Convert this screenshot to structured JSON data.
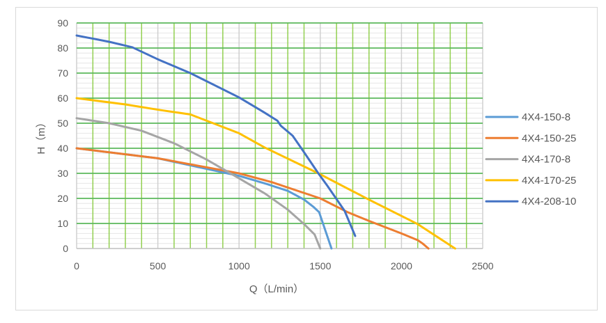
{
  "chart_data": {
    "type": "line",
    "title": "",
    "xlabel": "Q（L/min）",
    "ylabel": "H（m）",
    "xlim": [
      0,
      2500
    ],
    "ylim": [
      0,
      90
    ],
    "xticks": [
      "0",
      "500",
      "1000",
      "1500",
      "2000",
      "2500"
    ],
    "yticks": [
      "0",
      "10",
      "20",
      "30",
      "40",
      "50",
      "60",
      "70",
      "80",
      "90"
    ],
    "grid": true,
    "legend_position": "right",
    "series": [
      {
        "name": "4X4-150-8",
        "color": "#5B9BD5",
        "x": [
          0,
          500,
          1000,
          1158,
          1300,
          1401,
          1460,
          1493,
          1569
        ],
        "y": [
          40,
          36,
          29,
          26,
          23,
          19.5,
          16.5,
          14.5,
          0
        ]
      },
      {
        "name": "4X4-150-25",
        "color": "#ED7D31",
        "x": [
          0,
          500,
          1000,
          1200,
          1500,
          1672,
          1800,
          2000,
          2101,
          2130,
          2166
        ],
        "y": [
          40,
          36,
          30,
          26.5,
          20,
          14.4,
          11,
          6,
          3.3,
          2,
          0
        ]
      },
      {
        "name": "4X4-170-8",
        "color": "#A5A5A5",
        "x": [
          0,
          200,
          400,
          600,
          800,
          1000,
          1158,
          1300,
          1401,
          1465,
          1500
        ],
        "y": [
          52,
          50,
          47,
          42,
          35.5,
          28,
          22,
          15.5,
          9.7,
          5.6,
          0
        ]
      },
      {
        "name": "4X4-170-25",
        "color": "#FFC000",
        "x": [
          0,
          300,
          500,
          700,
          800,
          1000,
          1158,
          1488,
          1800,
          2101,
          2330
        ],
        "y": [
          60,
          57.5,
          55.4,
          53.5,
          51,
          46,
          40.3,
          30,
          19.5,
          9.7,
          0
        ]
      },
      {
        "name": "4X4-208-10",
        "color": "#4472C4",
        "x": [
          0,
          200,
          343,
          500,
          700,
          1000,
          1150,
          1236,
          1257,
          1330,
          1394,
          1488,
          1544,
          1650,
          1715
        ],
        "y": [
          85,
          82.5,
          80.3,
          75.5,
          70,
          60.3,
          54.5,
          51,
          49,
          45,
          39,
          30,
          25,
          15,
          5
        ]
      }
    ]
  }
}
